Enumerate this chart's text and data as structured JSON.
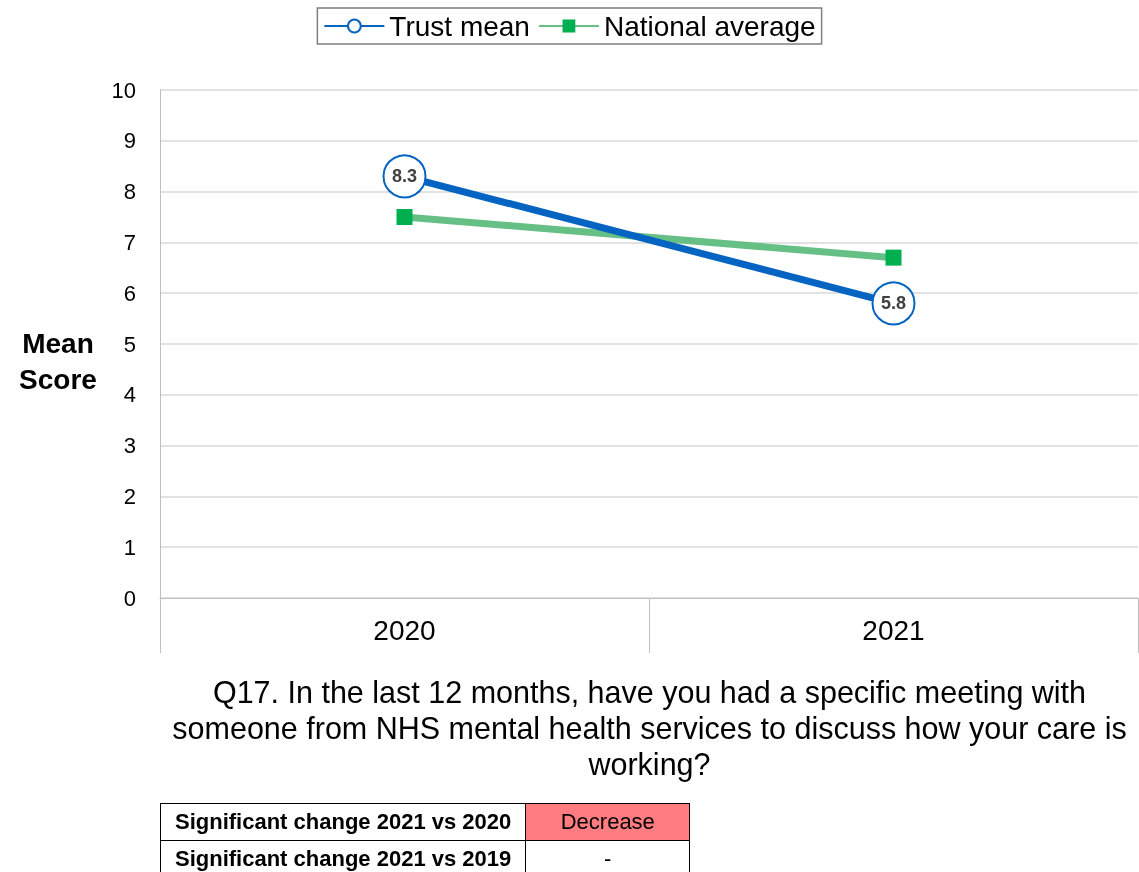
{
  "chart_data": {
    "type": "line",
    "xlabel": "Q17. In the last 12 months, have you had a specific meeting with someone from NHS mental health services to discuss how your care is working?",
    "ylabel": "Mean Score",
    "categories": [
      "2020",
      "2021"
    ],
    "series": [
      {
        "name": "Trust mean",
        "color": "#0563c1",
        "values": [
          8.3,
          5.8
        ],
        "marker": "circle",
        "value_labels": [
          "8.3",
          "5.8"
        ]
      },
      {
        "name": "National average",
        "color": "#66bf85",
        "values": [
          7.5,
          6.7
        ],
        "marker": "square"
      }
    ],
    "ylim": [
      0,
      10
    ],
    "yticks": [
      0,
      1,
      2,
      3,
      4,
      5,
      6,
      7,
      8,
      9,
      10
    ],
    "grid": "y",
    "legend": "top",
    "annotations": [
      "Significant change 2021 vs 2020",
      "Decrease",
      "Significant change 2021 vs 2019",
      "-"
    ]
  }
}
